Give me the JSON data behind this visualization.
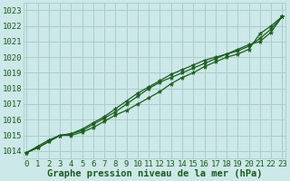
{
  "xlabel": "Graphe pression niveau de la mer (hPa)",
  "ylabel": "",
  "background_color": "#cce8e8",
  "grid_color": "#aacccc",
  "line_color": "#1a5c1a",
  "xlim": [
    -0.3,
    23.3
  ],
  "ylim": [
    1013.5,
    1023.5
  ],
  "yticks": [
    1014,
    1015,
    1016,
    1017,
    1018,
    1019,
    1020,
    1021,
    1022,
    1023
  ],
  "xticks": [
    0,
    1,
    2,
    3,
    4,
    5,
    6,
    7,
    8,
    9,
    10,
    11,
    12,
    13,
    14,
    15,
    16,
    17,
    18,
    19,
    20,
    21,
    22,
    23
  ],
  "series": [
    [
      1013.9,
      1014.2,
      1014.6,
      1015.0,
      1015.0,
      1015.2,
      1015.5,
      1015.9,
      1016.3,
      1016.6,
      1017.0,
      1017.4,
      1017.8,
      1018.3,
      1018.7,
      1019.0,
      1019.4,
      1019.7,
      1020.0,
      1020.2,
      1020.5,
      1021.5,
      1022.0,
      1022.6
    ],
    [
      1013.9,
      1014.2,
      1014.6,
      1015.0,
      1015.1,
      1015.3,
      1015.7,
      1016.1,
      1016.5,
      1017.0,
      1017.5,
      1018.0,
      1018.4,
      1018.7,
      1019.0,
      1019.3,
      1019.6,
      1019.9,
      1020.2,
      1020.4,
      1020.7,
      1021.2,
      1021.8,
      1022.6
    ],
    [
      1013.9,
      1014.3,
      1014.7,
      1015.0,
      1015.1,
      1015.4,
      1015.8,
      1016.2,
      1016.7,
      1017.2,
      1017.7,
      1018.1,
      1018.5,
      1018.9,
      1019.2,
      1019.5,
      1019.8,
      1020.0,
      1020.2,
      1020.5,
      1020.8,
      1021.0,
      1021.6,
      1022.6
    ]
  ],
  "title_fontsize": 7,
  "label_fontsize": 7.5,
  "tick_fontsize": 6.5
}
